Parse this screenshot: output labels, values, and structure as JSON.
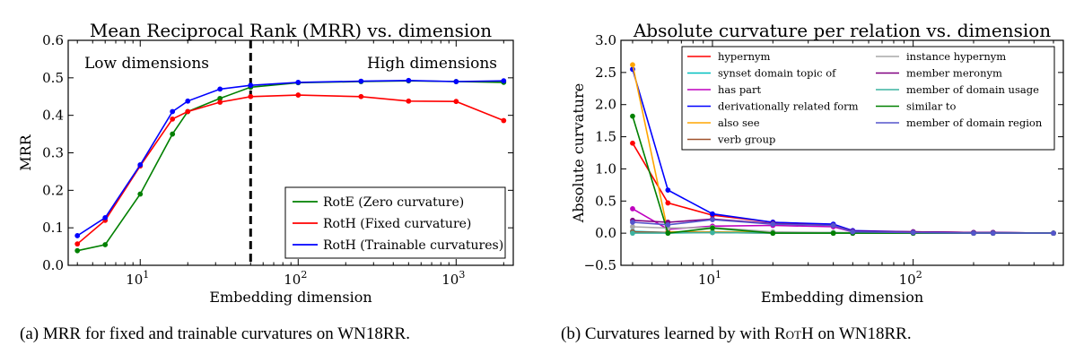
{
  "panels": [
    {
      "caption": "(a) MRR for fixed and trainable curvatures on WN18RR."
    },
    {
      "caption_pre": "(b) Curvatures learned by with ",
      "caption_sc": "RotH",
      "caption_post": " on WN18RR."
    }
  ],
  "chart_data": [
    {
      "type": "line",
      "title": "Mean Reciprocal Rank (MRR) vs. dimension",
      "xlabel": "Embedding dimension",
      "ylabel": "MRR",
      "xscale": "log",
      "xlim": [
        3.5,
        2300
      ],
      "ylim": [
        0.0,
        0.6
      ],
      "yticks": [
        0.0,
        0.1,
        0.2,
        0.3,
        0.4,
        0.5,
        0.6
      ],
      "ytick_labels": [
        "0.0",
        "0.1",
        "0.2",
        "0.3",
        "0.4",
        "0.5",
        "0.6"
      ],
      "xticks": [
        10,
        100,
        1000
      ],
      "xtick_labels": [
        {
          "base": "10",
          "exp": "1"
        },
        {
          "base": "10",
          "exp": "2"
        },
        {
          "base": "10",
          "exp": "3"
        }
      ],
      "annotations": [
        {
          "text": "Low dimensions",
          "x": 4,
          "y": 0.53
        },
        {
          "text": "High dimensions",
          "x": 2000,
          "y": 0.53
        }
      ],
      "vline": {
        "x": 50,
        "style": "dashed"
      },
      "grid": false,
      "legend_position": "lower-right",
      "series": [
        {
          "name": "RotE (Zero curvature)",
          "color": "#008000",
          "x": [
            4,
            6,
            10,
            16,
            20,
            32,
            50,
            100,
            250,
            500,
            1000,
            2000
          ],
          "y": [
            0.039,
            0.055,
            0.19,
            0.35,
            0.41,
            0.445,
            0.475,
            0.487,
            0.49,
            0.492,
            0.49,
            0.488
          ]
        },
        {
          "name": "RotH (Fixed curvature)",
          "color": "#ff0000",
          "x": [
            4,
            6,
            10,
            16,
            20,
            32,
            50,
            100,
            250,
            500,
            1000,
            2000
          ],
          "y": [
            0.057,
            0.12,
            0.265,
            0.39,
            0.41,
            0.435,
            0.45,
            0.454,
            0.45,
            0.438,
            0.437,
            0.386
          ]
        },
        {
          "name": "RotH (Trainable curvatures)",
          "color": "#0000ff",
          "x": [
            4,
            6,
            10,
            16,
            20,
            32,
            50,
            100,
            250,
            500,
            1000,
            2000
          ],
          "y": [
            0.079,
            0.127,
            0.268,
            0.41,
            0.438,
            0.47,
            0.48,
            0.488,
            0.491,
            0.493,
            0.49,
            0.492
          ]
        }
      ]
    },
    {
      "type": "line",
      "title": "Absolute curvature per relation vs. dimension",
      "xlabel": "Embedding dimension",
      "ylabel": "Absolute curvature",
      "xscale": "log",
      "xlim": [
        3.5,
        560
      ],
      "ylim": [
        -0.5,
        3.0
      ],
      "yticks": [
        -0.5,
        0.0,
        0.5,
        1.0,
        1.5,
        2.0,
        2.5,
        3.0
      ],
      "ytick_labels": [
        "−0.5",
        "0.0",
        "0.5",
        "1.0",
        "1.5",
        "2.0",
        "2.5",
        "3.0"
      ],
      "xticks": [
        10,
        100
      ],
      "xtick_labels": [
        {
          "base": "10",
          "exp": "1"
        },
        {
          "base": "10",
          "exp": "2"
        }
      ],
      "grid": false,
      "legend_position": "top-right",
      "series": [
        {
          "name": "hypernym",
          "color": "#ff0000",
          "x": [
            4,
            6,
            10,
            20,
            40,
            50,
            100,
            200,
            250,
            500
          ],
          "y": [
            1.4,
            0.47,
            0.28,
            0.17,
            0.13,
            0.03,
            0.02,
            0.01,
            0.01,
            0.0
          ]
        },
        {
          "name": "synset domain topic of",
          "color": "#00bfbf",
          "x": [
            4,
            6,
            10,
            20,
            40,
            50,
            100,
            200,
            250,
            500
          ],
          "y": [
            0.03,
            0.01,
            0.02,
            0.01,
            0.01,
            0.0,
            0.0,
            0.0,
            0.0,
            0.0
          ]
        },
        {
          "name": "has part",
          "color": "#bf00bf",
          "x": [
            4,
            6,
            10,
            20,
            40,
            50,
            100,
            200,
            250,
            500
          ],
          "y": [
            0.38,
            0.06,
            0.11,
            0.12,
            0.1,
            0.02,
            0.01,
            0.0,
            0.0,
            0.0
          ]
        },
        {
          "name": "derivationally related form",
          "color": "#0000ff",
          "x": [
            4,
            6,
            10,
            20,
            40,
            50,
            100,
            200,
            250,
            500
          ],
          "y": [
            2.55,
            0.67,
            0.3,
            0.17,
            0.14,
            0.04,
            0.02,
            0.01,
            0.01,
            0.0
          ]
        },
        {
          "name": "also see",
          "color": "#ffa500",
          "x": [
            4,
            6,
            10,
            20,
            40,
            50,
            100,
            200,
            250,
            500
          ],
          "y": [
            2.62,
            0.02,
            0.02,
            0.01,
            0.0,
            0.0,
            0.0,
            0.0,
            0.0,
            0.0
          ]
        },
        {
          "name": "verb group",
          "color": "#a0522d",
          "x": [
            4,
            6,
            10,
            20,
            40,
            50,
            100,
            200,
            250,
            500
          ],
          "y": [
            0.02,
            0.01,
            0.01,
            0.0,
            0.0,
            0.0,
            0.0,
            0.0,
            0.0,
            0.0
          ]
        },
        {
          "name": "instance hypernym",
          "color": "#a9a9a9",
          "x": [
            4,
            6,
            10,
            20,
            40,
            50,
            100,
            200,
            250,
            500
          ],
          "y": [
            0.1,
            0.08,
            0.09,
            0.02,
            0.01,
            0.01,
            0.0,
            0.0,
            0.0,
            0.0
          ]
        },
        {
          "name": "member meronym",
          "color": "#800080",
          "x": [
            4,
            6,
            10,
            20,
            40,
            50,
            100,
            200,
            250,
            500
          ],
          "y": [
            0.2,
            0.17,
            0.22,
            0.15,
            0.12,
            0.03,
            0.02,
            0.01,
            0.01,
            0.0
          ]
        },
        {
          "name": "member of domain usage",
          "color": "#3cb3a0",
          "x": [
            4,
            6,
            10,
            20,
            40,
            50,
            100,
            200,
            250,
            500
          ],
          "y": [
            0.0,
            0.0,
            0.01,
            0.0,
            0.0,
            0.0,
            0.0,
            0.0,
            0.0,
            0.0
          ]
        },
        {
          "name": "similar to",
          "color": "#008000",
          "x": [
            4,
            6,
            10,
            20,
            40,
            50,
            100,
            200,
            250,
            500
          ],
          "y": [
            1.82,
            0.0,
            0.08,
            0.0,
            0.0,
            0.0,
            0.0,
            0.0,
            0.0,
            0.0
          ]
        },
        {
          "name": "member of domain region",
          "color": "#5555cc",
          "x": [
            4,
            6,
            10,
            20,
            40,
            50,
            100,
            200,
            250,
            500
          ],
          "y": [
            0.17,
            0.13,
            0.21,
            0.14,
            0.12,
            0.02,
            0.01,
            0.0,
            0.0,
            0.0
          ]
        }
      ]
    }
  ]
}
